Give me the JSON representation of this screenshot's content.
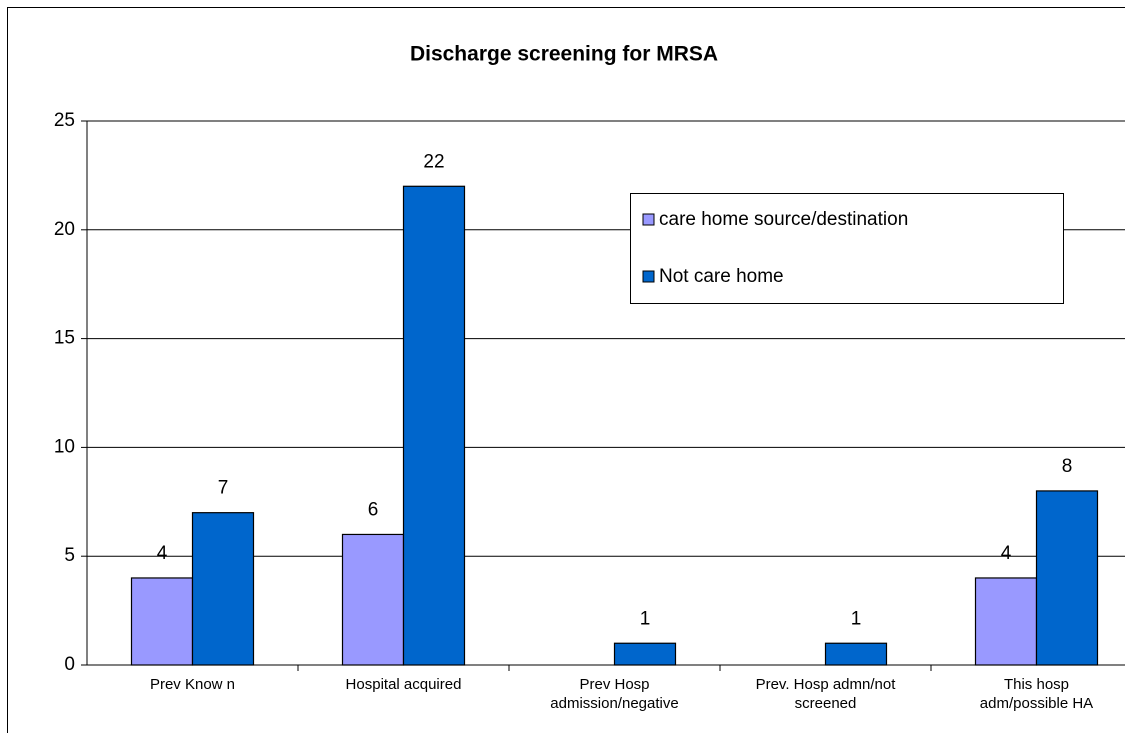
{
  "chart_data": {
    "type": "bar",
    "title": "Discharge screening for MRSA",
    "categories": [
      "Prev Know n",
      "Hospital acquired",
      "Prev Hosp\nadmission/negative",
      "Prev. Hosp admn/not\nscreened",
      "This hosp\nadm/possible HA"
    ],
    "series": [
      {
        "name": "care home source/destination",
        "color": "#9999ff",
        "values": [
          4,
          6,
          null,
          null,
          4
        ]
      },
      {
        "name": "Not care home",
        "color": "#0066cc",
        "values": [
          7,
          22,
          1,
          1,
          8
        ]
      }
    ],
    "ylim": [
      0,
      25
    ],
    "yticks": [
      0,
      5,
      10,
      15,
      20,
      25
    ],
    "grid": true,
    "legend": "upper right"
  }
}
